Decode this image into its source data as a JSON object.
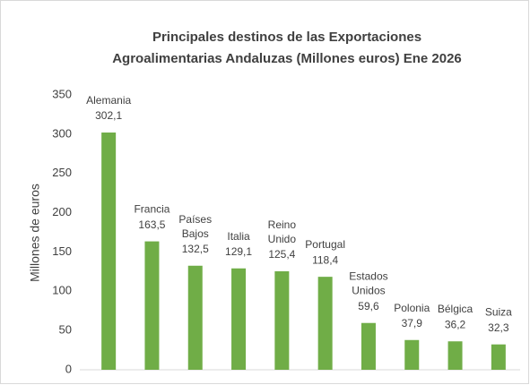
{
  "chart_data": {
    "type": "bar",
    "title": [
      "Principales destinos de las Exportaciones",
      "Agroalimentarias Andaluzas (Millones euros) Ene 2026"
    ],
    "y_label": "Millones de euros",
    "categories": [
      "Alemania",
      "Francia",
      "Países Bajos",
      "Italia",
      "Reino Unido",
      "Portugal",
      "Estados Unidos",
      "Polonia",
      "Bélgica",
      "Suiza"
    ],
    "values": [
      302.1,
      163.5,
      132.5,
      129.1,
      125.4,
      118.4,
      59.6,
      37.9,
      36.2,
      32.3
    ],
    "value_labels": [
      "302,1",
      "163,5",
      "132,5",
      "129,1",
      "125,4",
      "118,4",
      "59,6",
      "37,9",
      "36,2",
      "32,3"
    ],
    "color": "#70ad47",
    "ylim": [
      0,
      350
    ],
    "yticks": [
      0,
      50,
      100,
      150,
      200,
      250,
      300,
      350
    ],
    "grid": false
  }
}
